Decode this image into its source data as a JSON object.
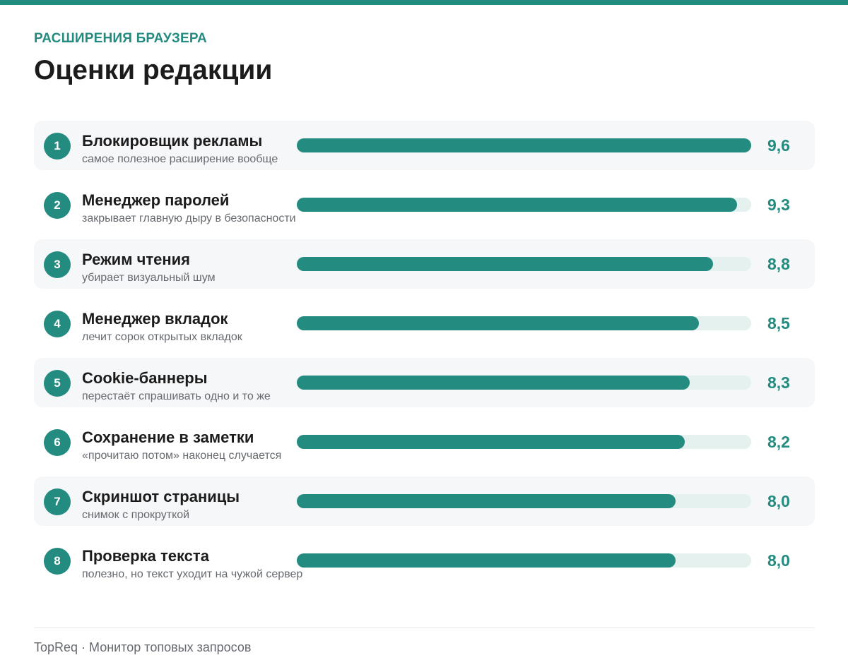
{
  "header": {
    "kicker": "РАСШИРЕНИЯ БРАУЗЕРА",
    "title": "Оценки редакции"
  },
  "colors": {
    "accent": "#238b7f",
    "track": "#e4f1ef",
    "row_shade": "#f6f7f9"
  },
  "chart_data": {
    "type": "bar",
    "title": "Оценки редакции",
    "orientation": "horizontal",
    "xlim": [
      0,
      9.6
    ],
    "items": [
      {
        "rank": "1",
        "name": "Блокировщик рекламы",
        "note": "самое полезное расширение вообще",
        "value": 9.6,
        "label": "9,6"
      },
      {
        "rank": "2",
        "name": "Менеджер паролей",
        "note": "закрывает главную дыру в безопасности",
        "value": 9.3,
        "label": "9,3"
      },
      {
        "rank": "3",
        "name": "Режим чтения",
        "note": "убирает визуальный шум",
        "value": 8.8,
        "label": "8,8"
      },
      {
        "rank": "4",
        "name": "Менеджер вкладок",
        "note": "лечит сорок открытых вкладок",
        "value": 8.5,
        "label": "8,5"
      },
      {
        "rank": "5",
        "name": "Cookie-баннеры",
        "note": "перестаёт спрашивать одно и то же",
        "value": 8.3,
        "label": "8,3"
      },
      {
        "rank": "6",
        "name": "Сохранение в заметки",
        "note": "«прочитаю потом» наконец случается",
        "value": 8.2,
        "label": "8,2"
      },
      {
        "rank": "7",
        "name": "Скриншот страницы",
        "note": "снимок с прокруткой",
        "value": 8.0,
        "label": "8,0"
      },
      {
        "rank": "8",
        "name": "Проверка текста",
        "note": "полезно, но текст уходит на чужой сервер",
        "value": 8.0,
        "label": "8,0"
      }
    ]
  },
  "footer": {
    "text": "TopReq · Монитор топовых запросов"
  }
}
